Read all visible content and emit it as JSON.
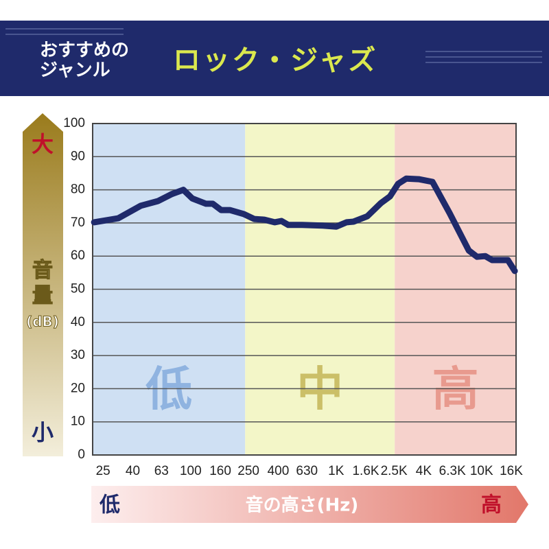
{
  "chart_data": {
    "type": "line",
    "genre_label": [
      "おすすめの",
      "ジャンル"
    ],
    "title": "ロック・ジャズ",
    "y_label": [
      "音",
      "量",
      "(dB)"
    ],
    "y_scale_labels": {
      "high": "大",
      "low": "小"
    },
    "x_label": "音の高さ(Hz)",
    "x_scale_labels": {
      "low": "低",
      "high": "高"
    },
    "log_x": true,
    "xlim": [
      21.2,
      17260
    ],
    "ylim": [
      0,
      100
    ],
    "yticks": [
      0,
      10,
      20,
      30,
      40,
      50,
      60,
      70,
      80,
      90,
      100
    ],
    "xticks": [
      25,
      40,
      63,
      100,
      160,
      250,
      400,
      630,
      {
        "value": 1000,
        "label": "1K"
      },
      {
        "value": 1600,
        "label": "1.6K"
      },
      {
        "value": 2500,
        "label": "2.5K"
      },
      {
        "value": 4000,
        "label": "4K"
      },
      {
        "value": 6300,
        "label": "6.3K"
      },
      {
        "value": 10000,
        "label": "10K"
      },
      {
        "value": 16000,
        "label": "16K"
      }
    ],
    "grid": true,
    "bands": [
      {
        "label": "低",
        "from": 21.2,
        "to": 237,
        "color": "#cfe0f3",
        "label_color": "#8fb3e0"
      },
      {
        "label": "中",
        "from": 237,
        "to": 2530,
        "color": "#f3f6c8",
        "label_color": "#cbbf68"
      },
      {
        "label": "高",
        "from": 2530,
        "to": 17260,
        "color": "#f6d2cc",
        "label_color": "#e89a8e"
      }
    ],
    "series": [
      {
        "color": "#1f2a6b",
        "x": [
          21.7,
          31.8,
          45.4,
          59.6,
          74.1,
          89.1,
          102.6,
          127.5,
          142,
          162,
          186,
          232,
          273,
          321,
          378,
          421,
          469,
          583,
          808,
          1004,
          1181,
          1317,
          1637,
          2034,
          2343,
          2668,
          3040,
          3695,
          4595,
          6025,
          8170,
          9305,
          10600,
          11815,
          15170,
          16915
        ],
        "values": [
          70.2,
          71.4,
          75.2,
          76.6,
          78.7,
          80,
          77.4,
          75.8,
          75.8,
          73.9,
          73.9,
          72.7,
          71.2,
          71,
          70.2,
          70.6,
          69.4,
          69.4,
          69.2,
          68.9,
          70.2,
          70.4,
          72,
          76,
          78,
          81.8,
          83.4,
          83.2,
          82.4,
          73,
          61.7,
          59.8,
          60,
          58.8,
          58.8,
          55.5
        ]
      }
    ]
  }
}
